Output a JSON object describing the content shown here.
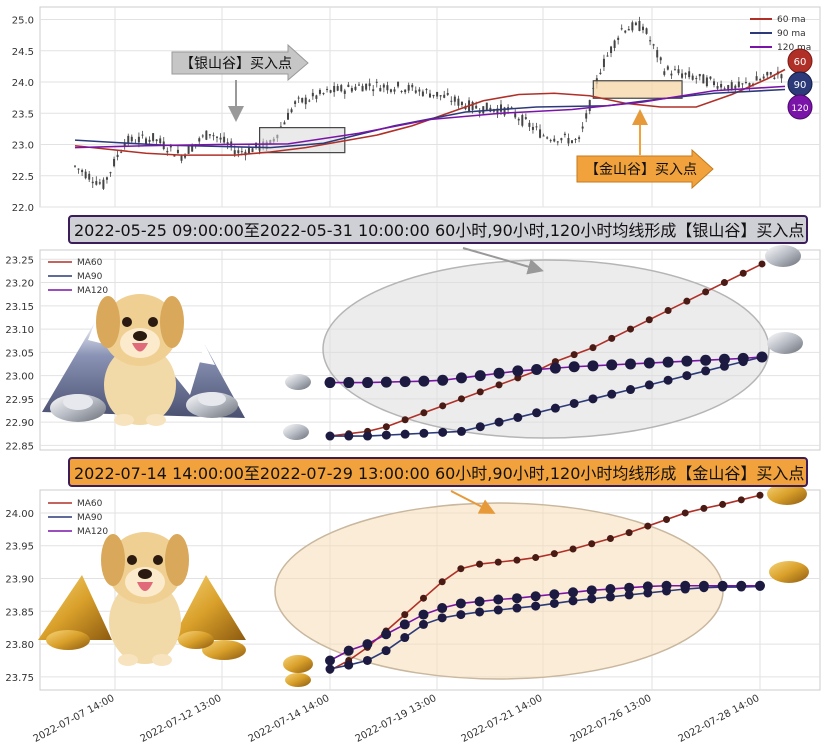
{
  "colors": {
    "ma60": "#b03028",
    "ma90": "#2c3a7a",
    "ma120": "#7a14a8",
    "candle": "#444444",
    "silver_banner": "#cfcfd6",
    "gold_banner": "#f2a23c",
    "silver_ellipse": "#d8d8d8",
    "gold_ellipse": "#f6dcb6"
  },
  "chart_data": [
    {
      "type": "candlestick",
      "legend": [
        "60 ma",
        "90 ma",
        "120 ma"
      ],
      "legend_position": "top-right",
      "badges": [
        "60",
        "90",
        "120"
      ],
      "ylim": [
        22.0,
        25.2
      ],
      "yticks": [
        "22.0",
        "22.5",
        "23.0",
        "23.5",
        "24.0",
        "24.5",
        "25.0"
      ],
      "grid": true,
      "x_count": 200,
      "ma60": [
        [
          0,
          22.98
        ],
        [
          10,
          22.92
        ],
        [
          20,
          22.86
        ],
        [
          30,
          22.83
        ],
        [
          45,
          22.83
        ],
        [
          55,
          22.88
        ],
        [
          65,
          22.95
        ],
        [
          75,
          23.05
        ],
        [
          85,
          23.15
        ],
        [
          95,
          23.3
        ],
        [
          105,
          23.5
        ],
        [
          115,
          23.7
        ],
        [
          125,
          23.8
        ],
        [
          135,
          23.82
        ],
        [
          145,
          23.78
        ],
        [
          155,
          23.66
        ],
        [
          165,
          23.6
        ],
        [
          175,
          23.6
        ],
        [
          185,
          23.8
        ],
        [
          195,
          24.05
        ],
        [
          200,
          24.2
        ]
      ],
      "ma90": [
        [
          0,
          23.07
        ],
        [
          12,
          23.03
        ],
        [
          25,
          22.99
        ],
        [
          40,
          22.97
        ],
        [
          55,
          22.95
        ],
        [
          70,
          23.02
        ],
        [
          90,
          23.3
        ],
        [
          110,
          23.52
        ],
        [
          130,
          23.6
        ],
        [
          150,
          23.62
        ],
        [
          165,
          23.73
        ],
        [
          180,
          23.82
        ],
        [
          200,
          23.88
        ]
      ],
      "ma120": [
        [
          0,
          22.95
        ],
        [
          20,
          22.98
        ],
        [
          40,
          23.0
        ],
        [
          60,
          23.01
        ],
        [
          80,
          23.18
        ],
        [
          100,
          23.4
        ],
        [
          120,
          23.5
        ],
        [
          140,
          23.56
        ],
        [
          160,
          23.68
        ],
        [
          180,
          23.86
        ],
        [
          200,
          23.93
        ]
      ],
      "silver_box": {
        "x0": 52,
        "x1": 76,
        "y0": 22.87,
        "y1": 23.27
      },
      "gold_box": {
        "x0": 146,
        "x1": 171,
        "y0": 23.74,
        "y1": 24.02
      },
      "silver_callout": "【银山谷】买入点",
      "gold_callout": "【金山谷】买入点"
    },
    {
      "type": "line",
      "title": "2022-05-25 09:00:00至2022-05-31 10:00:00 60小时,90小时,120小时均线形成【银山谷】买入点",
      "legend": [
        "MA60",
        "MA90",
        "MA120"
      ],
      "legend_position": "top-left",
      "ylim": [
        22.84,
        23.27
      ],
      "yticks": [
        "22.85",
        "22.90",
        "22.95",
        "23.00",
        "23.05",
        "23.10",
        "23.15",
        "23.20",
        "23.25"
      ],
      "grid": true,
      "x_count": 24,
      "ma60": [
        22.87,
        22.875,
        22.88,
        22.89,
        22.905,
        22.92,
        22.935,
        22.95,
        22.965,
        22.98,
        22.995,
        23.01,
        23.03,
        23.045,
        23.06,
        23.08,
        23.1,
        23.12,
        23.14,
        23.16,
        23.18,
        23.2,
        23.22,
        23.24
      ],
      "ma90": [
        22.87,
        22.87,
        22.87,
        22.872,
        22.874,
        22.876,
        22.878,
        22.88,
        22.89,
        22.9,
        22.91,
        22.92,
        22.93,
        22.94,
        22.95,
        22.96,
        22.97,
        22.98,
        22.99,
        23.0,
        23.01,
        23.02,
        23.03,
        23.04
      ],
      "ma120": [
        22.985,
        22.985,
        22.985,
        22.986,
        22.987,
        22.988,
        22.99,
        22.995,
        23.0,
        23.005,
        23.01,
        23.013,
        23.016,
        23.019,
        23.021,
        23.023,
        23.025,
        23.027,
        23.029,
        23.031,
        23.033,
        23.035,
        23.037,
        23.04
      ]
    },
    {
      "type": "line",
      "title": "2022-07-14 14:00:00至2022-07-29 13:00:00 60小时,90小时,120小时均线形成【金山谷】买入点",
      "legend": [
        "MA60",
        "MA90",
        "MA120"
      ],
      "legend_position": "top-left",
      "ylim": [
        23.73,
        24.035
      ],
      "yticks": [
        "23.75",
        "23.80",
        "23.85",
        "23.90",
        "23.95",
        "24.00"
      ],
      "grid": true,
      "x_count": 24,
      "ma60": [
        23.76,
        23.775,
        23.795,
        23.82,
        23.845,
        23.87,
        23.895,
        23.915,
        23.922,
        23.925,
        23.928,
        23.932,
        23.938,
        23.945,
        23.953,
        23.961,
        23.97,
        23.98,
        23.99,
        24.0,
        24.007,
        24.013,
        24.02,
        24.027
      ],
      "ma90": [
        23.762,
        23.768,
        23.775,
        23.79,
        23.81,
        23.83,
        23.84,
        23.845,
        23.849,
        23.852,
        23.855,
        23.858,
        23.862,
        23.866,
        23.869,
        23.872,
        23.875,
        23.878,
        23.881,
        23.884,
        23.886,
        23.887,
        23.887,
        23.888
      ],
      "ma120": [
        23.775,
        23.79,
        23.8,
        23.815,
        23.83,
        23.845,
        23.855,
        23.862,
        23.865,
        23.868,
        23.87,
        23.873,
        23.876,
        23.879,
        23.882,
        23.884,
        23.886,
        23.888,
        23.889,
        23.889,
        23.889,
        23.889,
        23.889,
        23.889
      ],
      "xticks": [
        "2022-07-07 14:00",
        "2022-07-12 13:00",
        "2022-07-14 14:00",
        "2022-07-19 13:00",
        "2022-07-21 14:00",
        "2022-07-26 13:00",
        "2022-07-28 14:00"
      ]
    }
  ]
}
